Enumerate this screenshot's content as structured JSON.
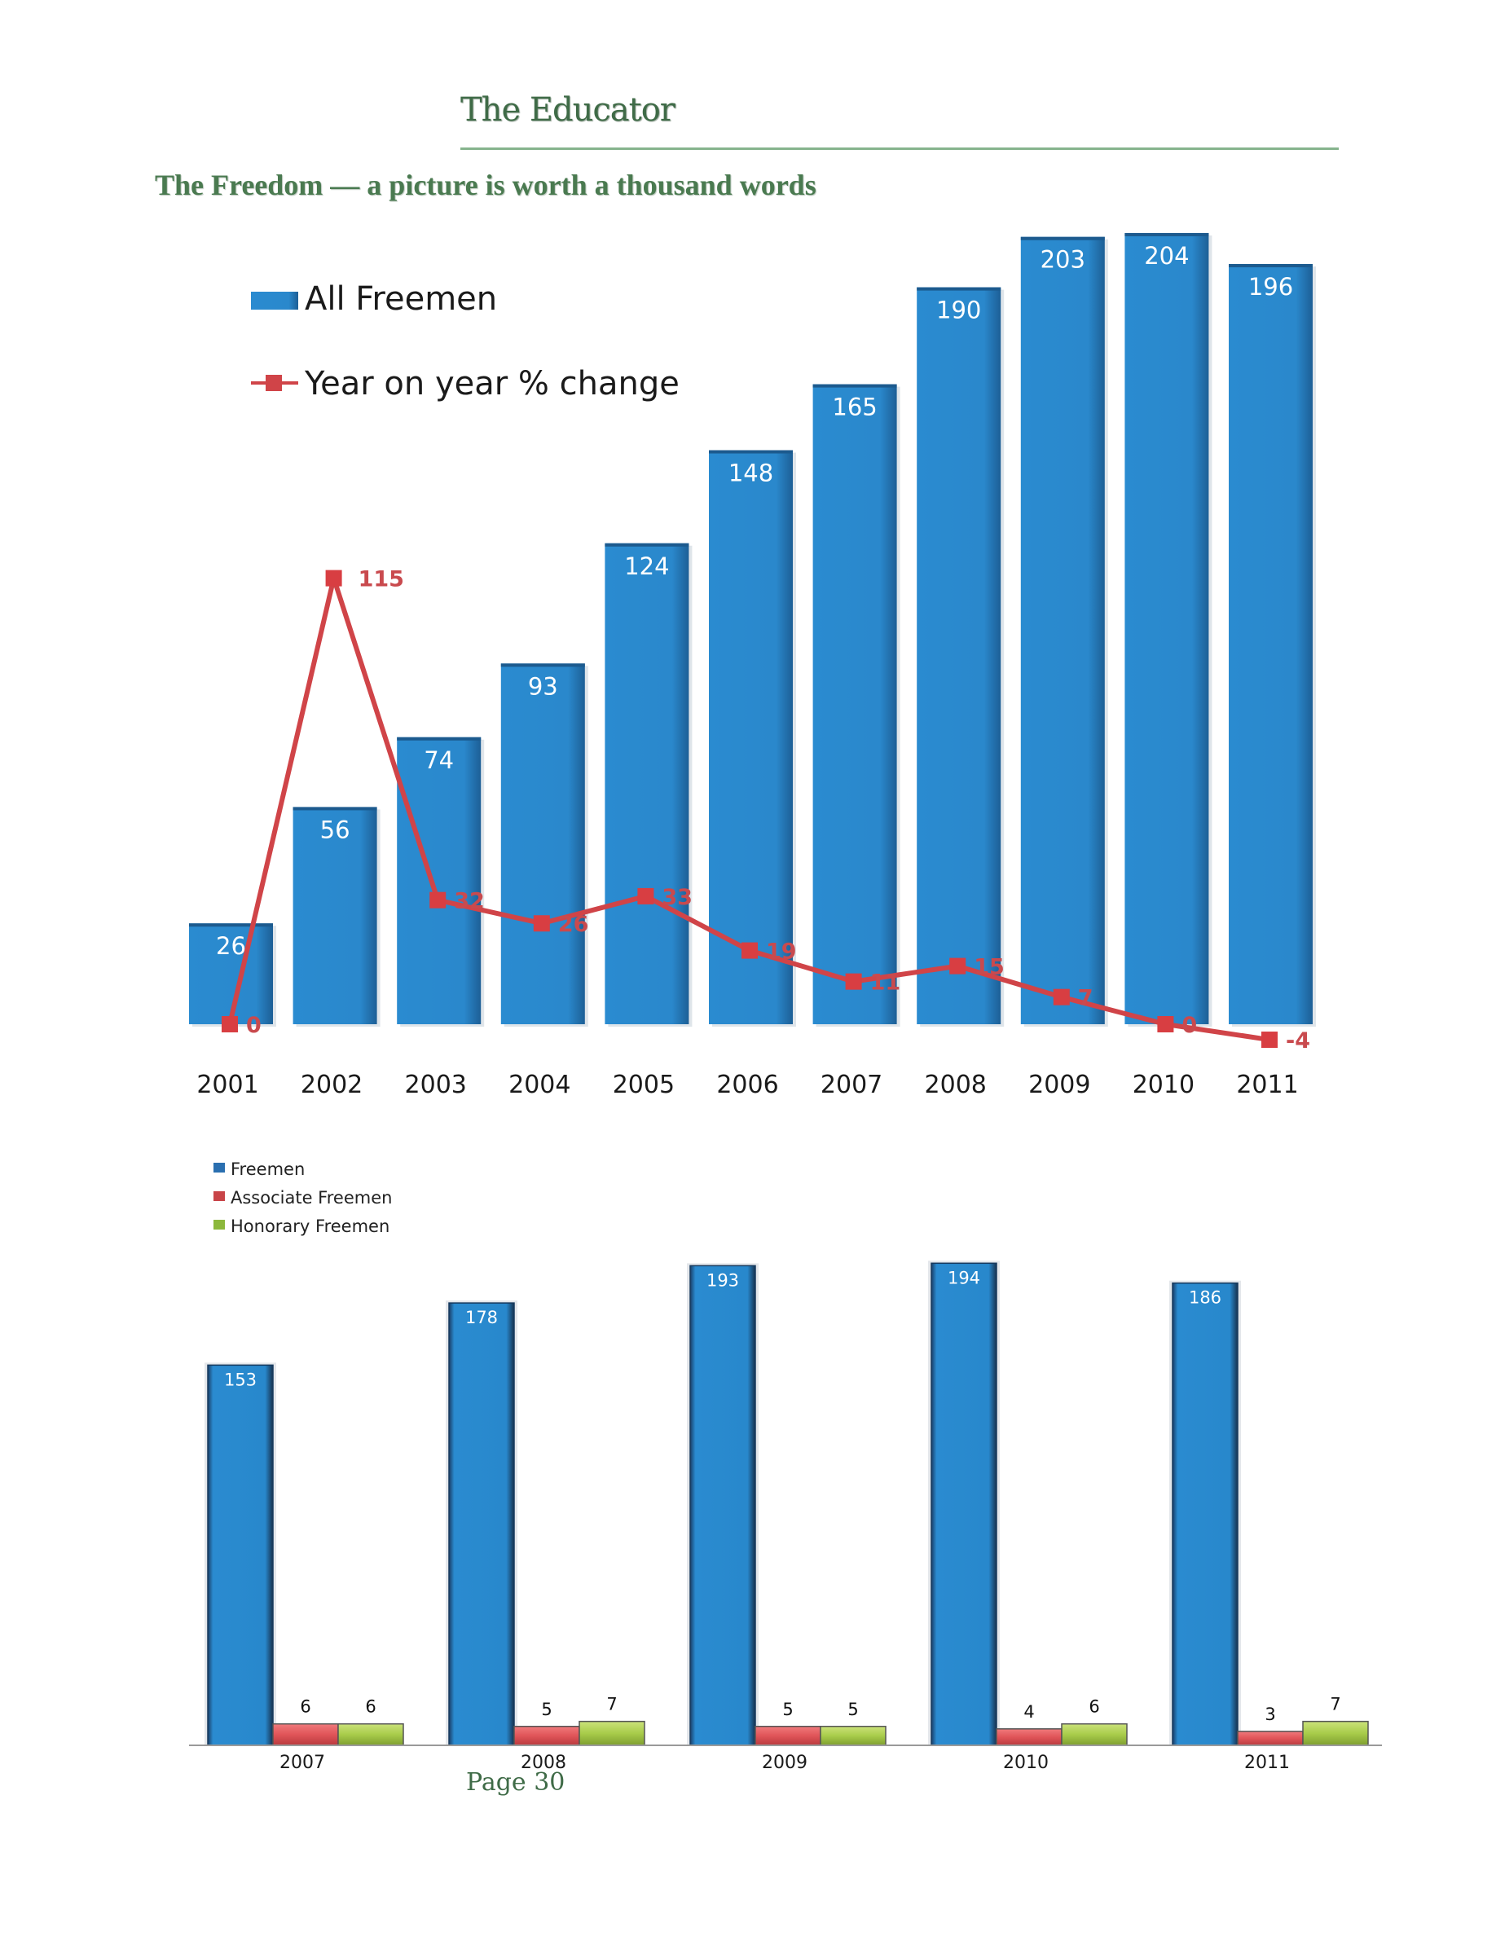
{
  "header": {
    "publication": "The Educator",
    "article_title": "The Freedom — a picture is worth a thousand words"
  },
  "footer": {
    "page_label": "Page 30"
  },
  "colors": {
    "heading_green": "#4a7a50",
    "rule_green": "#86b48d",
    "bar_blue": "#2a88cc",
    "line_red": "#d04448",
    "associate_red": "#e05458",
    "honorary_green": "#a8cc4a"
  },
  "chart_data": [
    {
      "type": "bar",
      "title": "",
      "xlabel": "",
      "ylabel": "",
      "categories": [
        "2001",
        "2002",
        "2003",
        "2004",
        "2005",
        "2006",
        "2007",
        "2008",
        "2009",
        "2010",
        "2011"
      ],
      "series": [
        {
          "name": "All Freemen",
          "kind": "bar",
          "values": [
            26,
            56,
            74,
            93,
            124,
            148,
            165,
            190,
            203,
            204,
            196
          ]
        },
        {
          "name": "Year on year % change",
          "kind": "line",
          "values": [
            0,
            115,
            32,
            26,
            33,
            19,
            11,
            15,
            7,
            0,
            -4
          ]
        }
      ],
      "legend": [
        "All Freemen",
        "Year on year % change"
      ],
      "legend_position": "top-left",
      "grid": false,
      "ylim": [
        -4,
        210
      ]
    },
    {
      "type": "bar",
      "title": "",
      "xlabel": "",
      "ylabel": "",
      "categories": [
        "2007",
        "2008",
        "2009",
        "2010",
        "2011"
      ],
      "series": [
        {
          "name": "Freemen",
          "values": [
            153,
            178,
            193,
            194,
            186
          ]
        },
        {
          "name": "Associate Freemen",
          "values": [
            6,
            5,
            5,
            4,
            3
          ]
        },
        {
          "name": "Honorary Freemen",
          "values": [
            6,
            7,
            5,
            6,
            7
          ]
        }
      ],
      "legend": [
        "Freemen",
        "Associate Freemen",
        "Honorary Freemen"
      ],
      "legend_position": "top-left",
      "grid": false,
      "ylim": [
        0,
        200
      ]
    }
  ]
}
